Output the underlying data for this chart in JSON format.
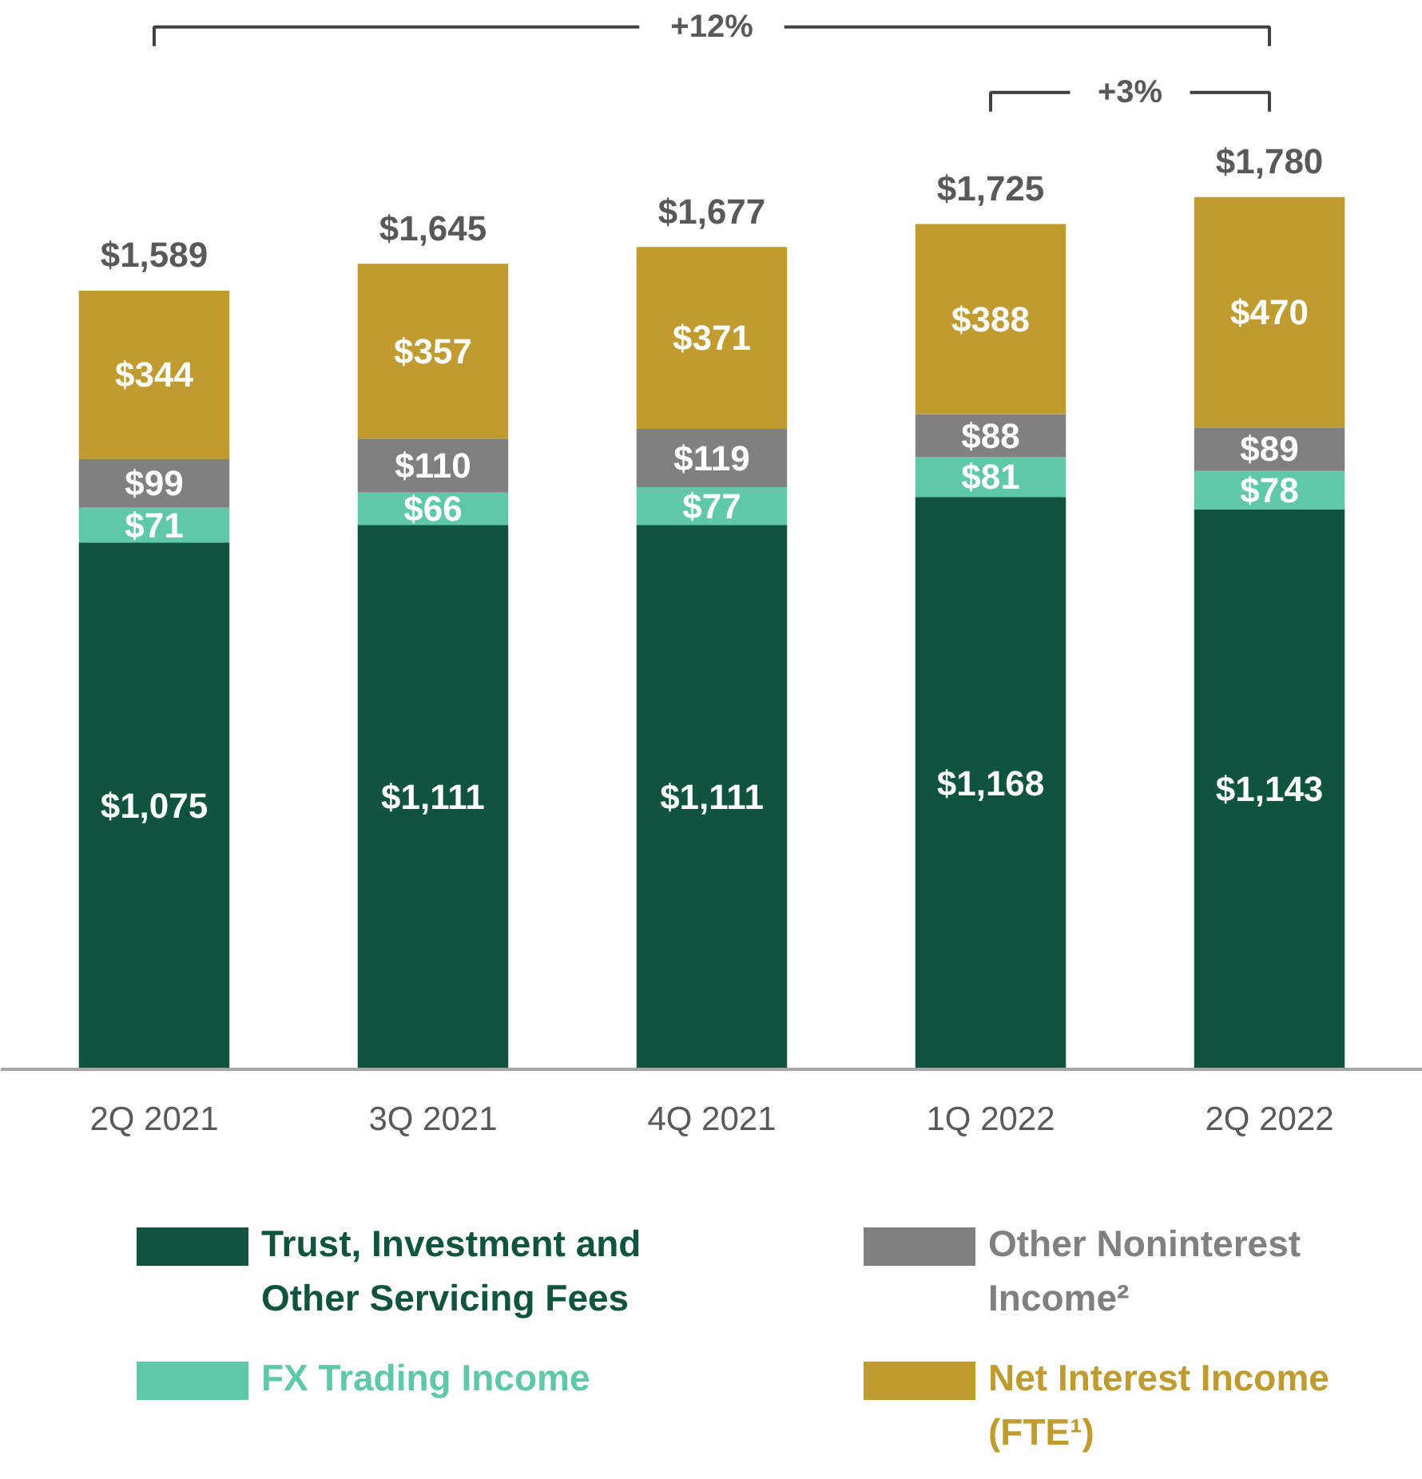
{
  "chart_data": {
    "type": "bar",
    "stacked": true,
    "legend": "bottom",
    "grid": false,
    "categories": [
      "2Q 2021",
      "3Q 2021",
      "4Q 2021",
      "1Q 2022",
      "2Q 2022"
    ],
    "series": [
      {
        "name": "Trust, Investment and Other Servicing Fees",
        "color": "#10533f",
        "values": [
          1075,
          1111,
          1111,
          1168,
          1143
        ],
        "value_labels": [
          "$1,075",
          "$1,111",
          "$1,111",
          "$1,168",
          "$1,143"
        ]
      },
      {
        "name": "FX Trading Income",
        "color": "#5ec8a8",
        "values": [
          71,
          66,
          77,
          81,
          78
        ],
        "value_labels": [
          "$71",
          "$66",
          "$77",
          "$81",
          "$78"
        ]
      },
      {
        "name": "Other Noninterest Income²",
        "color": "#808080",
        "values": [
          99,
          110,
          119,
          88,
          89
        ],
        "value_labels": [
          "$99",
          "$110",
          "$119",
          "$88",
          "$89"
        ]
      },
      {
        "name": "Net Interest Income (FTE¹)",
        "color": "#bf9b30",
        "values": [
          344,
          357,
          371,
          388,
          470
        ],
        "value_labels": [
          "$344",
          "$357",
          "$371",
          "$388",
          "$470"
        ]
      }
    ],
    "totals": [
      "$1,589",
      "$1,645",
      "$1,677",
      "$1,725",
      "$1,780"
    ],
    "annotations": [
      "+12%",
      "+3%"
    ]
  }
}
